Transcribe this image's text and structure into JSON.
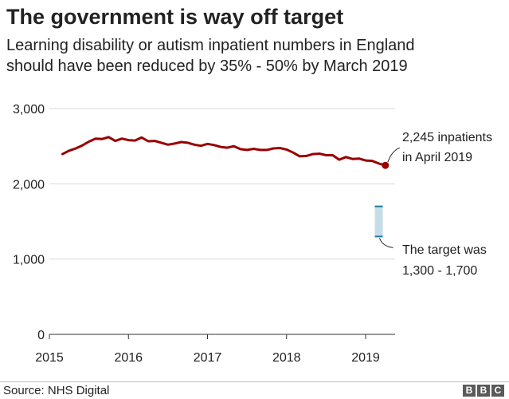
{
  "header": {
    "title": "The government is way off target",
    "subtitle_line1": "Learning disability or autism inpatient numbers in England",
    "subtitle_line2": "should have been reduced by 35% - 50% by March 2019"
  },
  "footer": {
    "source": "Source: NHS Digital",
    "logo": [
      "B",
      "B",
      "C"
    ]
  },
  "colors": {
    "line": "#990000",
    "target_fill": "#c6dde8",
    "target_edge": "#1f7a9c",
    "grid": "#d9d9d9",
    "axis": "#333333"
  },
  "chart_data": {
    "type": "line",
    "title": "The government is way off target",
    "subtitle": "Learning disability or autism inpatient numbers in England should have been reduced by 35% - 50% by March 2019",
    "xlabel": "",
    "ylabel": "",
    "ylim": [
      0,
      3000
    ],
    "yticks": [
      0,
      1000,
      2000,
      3000
    ],
    "ytick_labels": [
      "0",
      "1,000",
      "2,000",
      "3,000"
    ],
    "xticks": [
      "2015-01-01",
      "2016-01-01",
      "2017-01-01",
      "2018-01-01",
      "2019-01-01"
    ],
    "xtick_labels": [
      "2015",
      "2016",
      "2017",
      "2018",
      "2019"
    ],
    "grid": true,
    "series": [
      {
        "name": "",
        "x": [
          "2015-03",
          "2015-04",
          "2015-05",
          "2015-06",
          "2015-07",
          "2015-08",
          "2015-09",
          "2015-10",
          "2015-11",
          "2015-12",
          "2016-01",
          "2016-02",
          "2016-03",
          "2016-04",
          "2016-05",
          "2016-06",
          "2016-07",
          "2016-08",
          "2016-09",
          "2016-10",
          "2016-11",
          "2016-12",
          "2017-01",
          "2017-02",
          "2017-03",
          "2017-04",
          "2017-05",
          "2017-06",
          "2017-07",
          "2017-08",
          "2017-09",
          "2017-10",
          "2017-11",
          "2017-12",
          "2018-01",
          "2018-02",
          "2018-03",
          "2018-04",
          "2018-05",
          "2018-06",
          "2018-07",
          "2018-08",
          "2018-09",
          "2018-10",
          "2018-11",
          "2018-12",
          "2019-01",
          "2019-02",
          "2019-03",
          "2019-04"
        ],
        "values": [
          2395,
          2440,
          2470,
          2510,
          2560,
          2600,
          2595,
          2620,
          2570,
          2600,
          2580,
          2575,
          2615,
          2565,
          2570,
          2545,
          2520,
          2535,
          2555,
          2545,
          2520,
          2505,
          2530,
          2515,
          2490,
          2480,
          2500,
          2460,
          2450,
          2465,
          2450,
          2450,
          2470,
          2475,
          2455,
          2415,
          2365,
          2370,
          2395,
          2400,
          2380,
          2380,
          2320,
          2355,
          2330,
          2335,
          2310,
          2305,
          2270,
          2245
        ]
      }
    ],
    "target_range": {
      "x": "2019-03",
      "low": 1300,
      "high": 1700
    },
    "annotations": [
      {
        "lines": [
          "2,245 inpatients",
          "in April 2019"
        ],
        "x": "2019-04",
        "y": 2245
      },
      {
        "lines": [
          "The target was",
          "1,300 - 1,700"
        ],
        "x": "2019-03",
        "y": 1300
      }
    ]
  }
}
